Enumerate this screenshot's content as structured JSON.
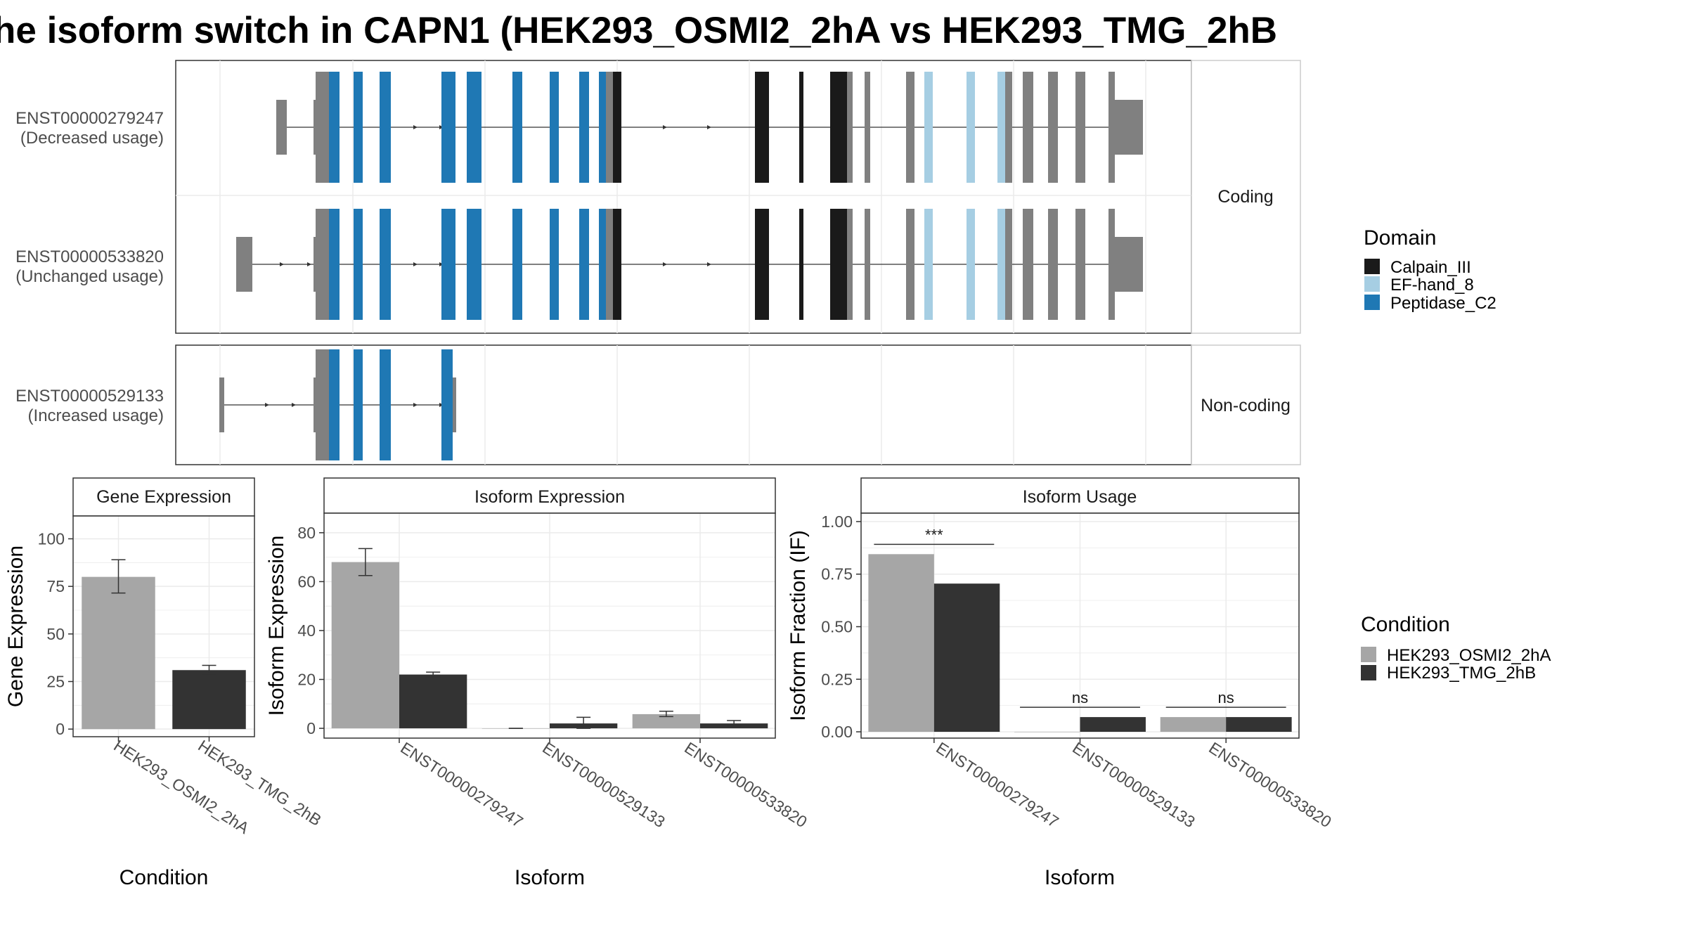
{
  "title": "he isoform switch in CAPN1 (HEK293_OSMI2_2hA vs HEK293_TMG_2hB",
  "colors": {
    "calpain_iii": "#1a1a1a",
    "ef_hand_8": "#a6cee3",
    "peptidase_c2": "#1f78b4",
    "non_domain_exon": "#808080",
    "condition_a": "#a6a6a6",
    "condition_b": "#333333"
  },
  "legends": {
    "domain": {
      "title": "Domain",
      "items": [
        {
          "label": "Calpain_III",
          "color_key": "calpain_iii"
        },
        {
          "label": "EF-hand_8",
          "color_key": "ef_hand_8"
        },
        {
          "label": "Peptidase_C2",
          "color_key": "peptidase_c2"
        }
      ]
    },
    "condition": {
      "title": "Condition",
      "items": [
        {
          "label": "HEK293_OSMI2_2hA",
          "color_key": "condition_a"
        },
        {
          "label": "HEK293_TMG_2hB",
          "color_key": "condition_b"
        }
      ]
    }
  },
  "structure_panels": {
    "coding_label": "Coding",
    "noncoding_label": "Non-coding",
    "transcripts": [
      {
        "id": "ENST00000279247",
        "usage": "(Decreased usage)",
        "group": "Coding"
      },
      {
        "id": "ENST00000533820",
        "usage": "(Unchanged usage)",
        "group": "Coding"
      },
      {
        "id": "ENST00000529133",
        "usage": "(Increased usage)",
        "group": "Non-coding"
      }
    ]
  },
  "chart_data": [
    {
      "type": "bar",
      "title": "Gene Expression",
      "xlabel": "Condition",
      "ylabel": "Gene Expression",
      "categories": [
        "HEK293_OSMI2_2hA",
        "HEK293_TMG_2hB"
      ],
      "values": [
        80,
        31
      ],
      "errors": [
        [
          71.5,
          89
        ],
        [
          29,
          33.5
        ]
      ],
      "yticks": [
        0,
        25,
        50,
        75,
        100
      ],
      "ylim": [
        -4,
        112
      ],
      "grid": true
    },
    {
      "type": "bar",
      "title": "Isoform Expression",
      "xlabel": "Isoform",
      "ylabel": "Isoform Expression",
      "categories": [
        "ENST00000279247",
        "ENST00000529133",
        "ENST00000533820"
      ],
      "series": [
        {
          "name": "HEK293_OSMI2_2hA",
          "values": [
            68,
            0,
            5.8
          ],
          "errors": [
            [
              62.5,
              73.5
            ],
            [
              0,
              0
            ],
            [
              4.8,
              7.0
            ]
          ]
        },
        {
          "name": "HEK293_TMG_2hB",
          "values": [
            22,
            2,
            2
          ],
          "errors": [
            [
              21,
              23
            ],
            [
              0,
              4.5
            ],
            [
              1,
              3.2
            ]
          ]
        }
      ],
      "yticks": [
        0,
        20,
        40,
        60,
        80
      ],
      "ylim": [
        -4,
        88
      ],
      "grid": true
    },
    {
      "type": "bar",
      "title": "Isoform Usage",
      "xlabel": "Isoform",
      "ylabel": "Isoform Fraction (IF)",
      "categories": [
        "ENST00000279247",
        "ENST00000529133",
        "ENST00000533820"
      ],
      "series": [
        {
          "name": "HEK293_OSMI2_2hA",
          "values": [
            0.845,
            0.0,
            0.07
          ]
        },
        {
          "name": "HEK293_TMG_2hB",
          "values": [
            0.705,
            0.07,
            0.07
          ]
        }
      ],
      "annotations": [
        "***",
        "ns",
        "ns"
      ],
      "yticks": [
        "0.00",
        "0.25",
        "0.50",
        "0.75",
        "1.00"
      ],
      "ylim": [
        -0.03,
        1.04
      ],
      "grid": true
    }
  ]
}
